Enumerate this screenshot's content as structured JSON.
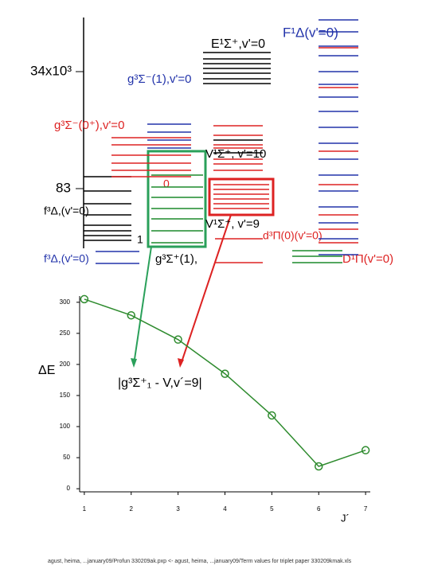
{
  "diagram": {
    "labels": [
      "F¹Δ(v'=0)",
      "E¹Σ⁺,v'=0",
      "34x10³",
      "g³Σ⁻(1),v'=0",
      "g³Σ⁻(0⁺),v'=0",
      "V¹Σ⁺, v'=10",
      "0",
      "83",
      "f³Δ,(v'=0)",
      "V¹Σ⁺, v'=9",
      "d³Π(0)(v'=0)",
      "1",
      "f³Δ,(v'=0)",
      "g³Σ⁺(1),",
      "D¹Π(v'=0)"
    ]
  },
  "chart_data": {
    "type": "line",
    "ylabel": "ΔE",
    "xlabel": "J´",
    "annotation": "|g³Σ⁺₁ - V,v´=9|",
    "x": [
      1,
      2,
      3,
      4,
      5,
      6,
      7
    ],
    "values": [
      305,
      279,
      240,
      185,
      118,
      36,
      62
    ],
    "color": "#2e8b2e",
    "xlim": [
      0.9,
      7.1
    ],
    "xticks": [
      1,
      2,
      3,
      4,
      5,
      6,
      7
    ],
    "ylim": [
      -5,
      310
    ],
    "yticks": [
      0,
      50,
      100,
      150,
      200,
      250,
      300
    ]
  },
  "footer": "agust, heima, ...january09/Profun 330209ak.pxp <- agust, heima, ...january09/Term values for triplet paper 330209kmak.xls"
}
